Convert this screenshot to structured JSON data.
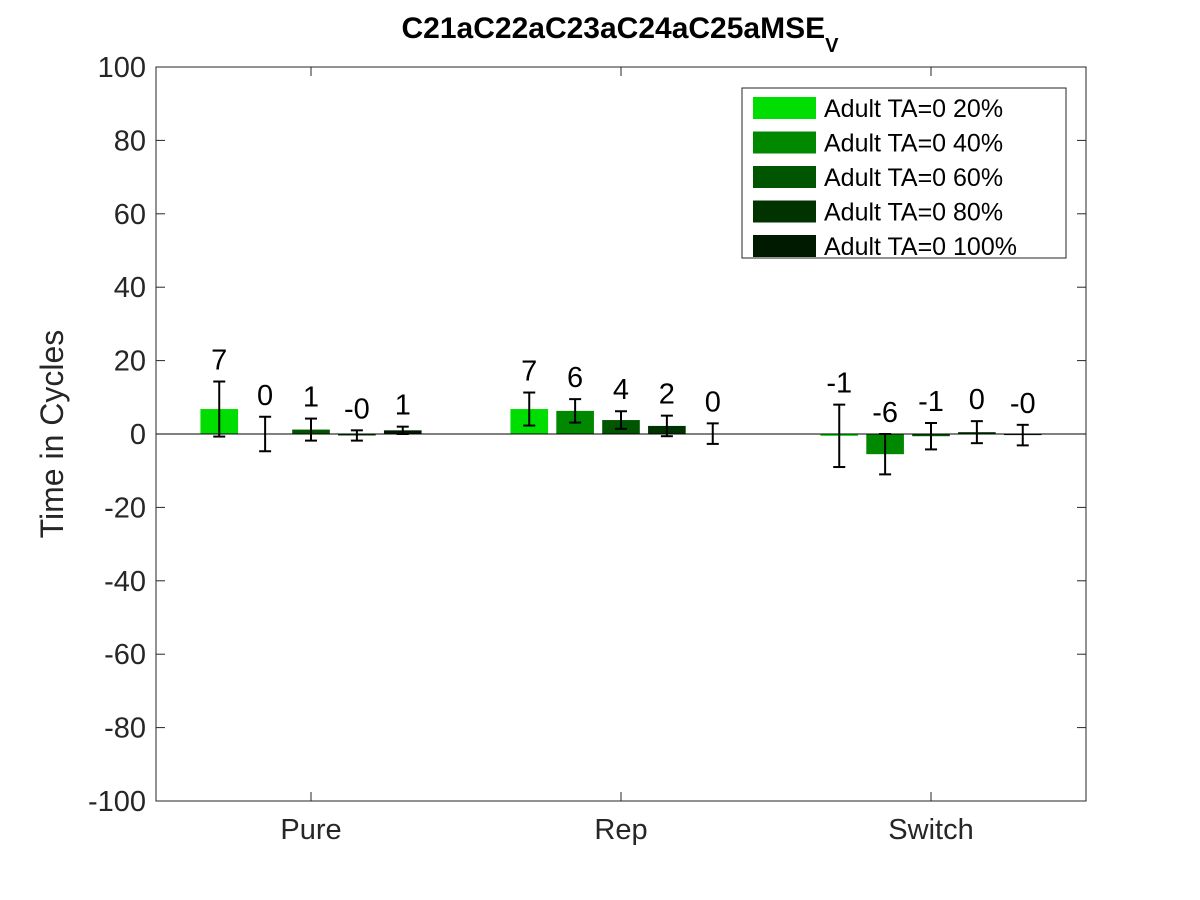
{
  "chart_data": {
    "type": "bar",
    "title": "C21aC22aC23aC24aC25aMSE",
    "title_subscript": "V",
    "xlabel": "",
    "ylabel": "Time in Cycles",
    "ylim": [
      -100,
      100
    ],
    "yticks": [
      -100,
      -80,
      -60,
      -40,
      -20,
      0,
      20,
      40,
      60,
      80,
      100
    ],
    "categories": [
      "Pure",
      "Rep",
      "Switch"
    ],
    "legend_position": "top-right",
    "grid": false,
    "series": [
      {
        "name": "Adult TA=0 20%",
        "color": "#00dd00",
        "values": [
          6.8,
          6.8,
          -0.5
        ],
        "errors": [
          7.5,
          4.5,
          8.5
        ],
        "labels": [
          "7",
          "7",
          "-1"
        ]
      },
      {
        "name": "Adult TA=0 40%",
        "color": "#008800",
        "values": [
          0.0,
          6.3,
          -5.5
        ],
        "errors": [
          4.7,
          3.2,
          5.5
        ],
        "labels": [
          "0",
          "6",
          "-6"
        ]
      },
      {
        "name": "Adult TA=0 60%",
        "color": "#005500",
        "values": [
          1.2,
          3.8,
          -0.6
        ],
        "errors": [
          3.0,
          2.4,
          3.6
        ],
        "labels": [
          "1",
          "4",
          "-1"
        ]
      },
      {
        "name": "Adult TA=0 80%",
        "color": "#003300",
        "values": [
          -0.4,
          2.2,
          0.5
        ],
        "errors": [
          1.4,
          2.8,
          3.0
        ],
        "labels": [
          "-0",
          "2",
          "0"
        ]
      },
      {
        "name": "Adult TA=0 100%",
        "color": "#001a00",
        "values": [
          1.0,
          0.1,
          -0.3
        ],
        "errors": [
          1.0,
          2.8,
          2.8
        ],
        "labels": [
          "1",
          "0",
          "-0"
        ]
      }
    ]
  }
}
